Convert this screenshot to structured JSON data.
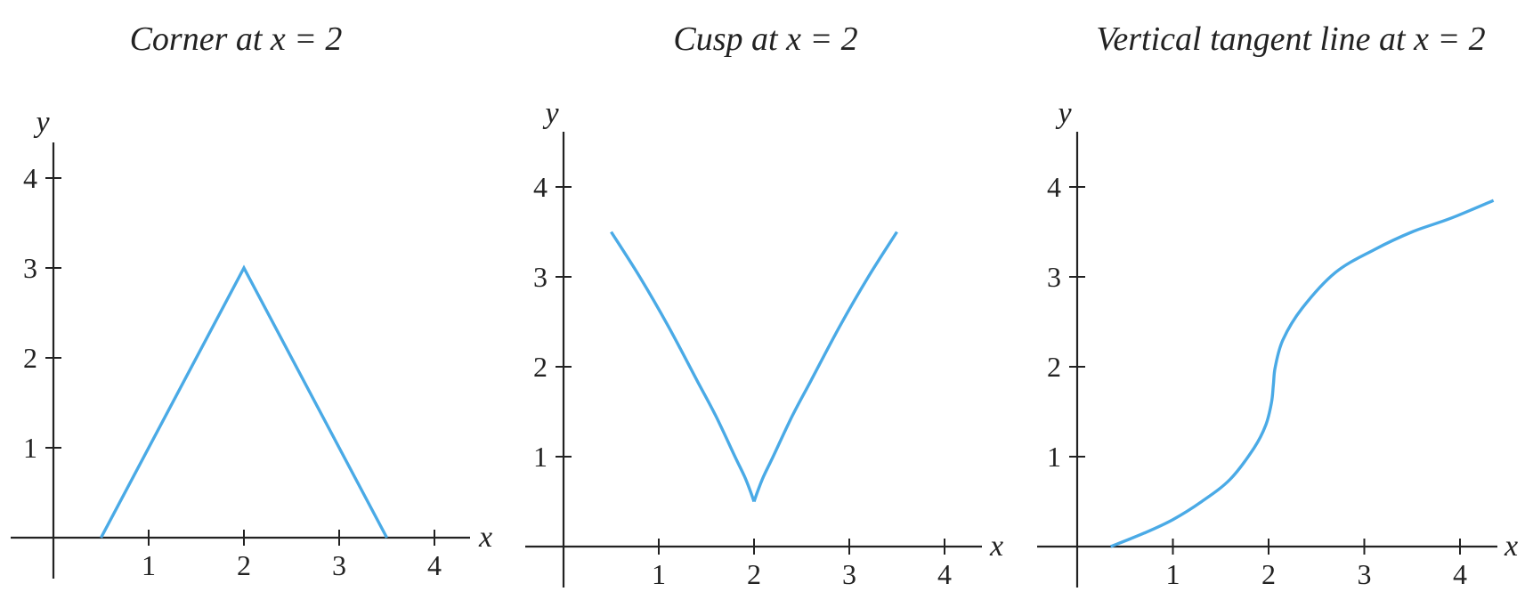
{
  "chart_data": [
    {
      "type": "line",
      "title": "Corner at x = 2",
      "xlabel": "x",
      "ylabel": "y",
      "xticks": [
        1,
        2,
        3,
        4
      ],
      "yticks": [
        1,
        2,
        3,
        4
      ],
      "xlim": [
        0,
        4
      ],
      "ylim": [
        0,
        4
      ],
      "grid": false,
      "color": "#4aaae6",
      "series": [
        {
          "x": [
            0.5,
            2,
            3.5
          ],
          "y": [
            0,
            3,
            0
          ]
        }
      ]
    },
    {
      "type": "line",
      "title": "Cusp at x = 2",
      "xlabel": "x",
      "ylabel": "y",
      "xticks": [
        1,
        2,
        3,
        4
      ],
      "yticks": [
        1,
        2,
        3,
        4
      ],
      "xlim": [
        0,
        4
      ],
      "ylim": [
        0,
        4
      ],
      "grid": false,
      "color": "#4aaae6",
      "series": [
        {
          "x": [
            0.5,
            0.8,
            1.1,
            1.4,
            1.6,
            1.8,
            1.9,
            1.96,
            2,
            2.04,
            2.1,
            2.2,
            2.4,
            2.6,
            2.9,
            3.2,
            3.5
          ],
          "y": [
            3.5,
            3.0,
            2.45,
            1.85,
            1.45,
            1.0,
            0.78,
            0.62,
            0.5,
            0.62,
            0.78,
            1.0,
            1.45,
            1.85,
            2.45,
            3.0,
            3.5
          ]
        }
      ]
    },
    {
      "type": "line",
      "title": "Vertical tangent line at x = 2",
      "xlabel": "x",
      "ylabel": "y",
      "xticks": [
        1,
        2,
        3,
        4
      ],
      "yticks": [
        1,
        2,
        3,
        4
      ],
      "xlim": [
        0,
        4.3
      ],
      "ylim": [
        0,
        4
      ],
      "grid": false,
      "color": "#4aaae6",
      "series": [
        {
          "x": [
            0.35,
            0.7,
            1.0,
            1.3,
            1.6,
            1.85,
            1.97,
            2.03,
            2.05,
            2.07,
            2.15,
            2.35,
            2.7,
            3.1,
            3.5,
            3.9,
            4.35
          ],
          "y": [
            0,
            0.15,
            0.3,
            0.5,
            0.75,
            1.1,
            1.35,
            1.6,
            1.8,
            2.0,
            2.3,
            2.65,
            3.05,
            3.3,
            3.5,
            3.65,
            3.85
          ]
        }
      ]
    }
  ]
}
